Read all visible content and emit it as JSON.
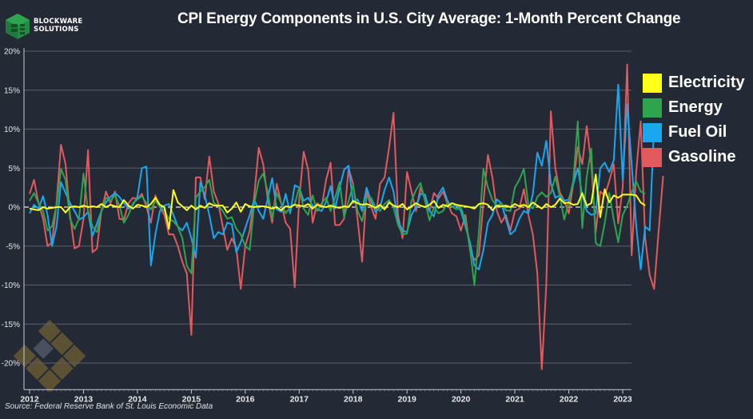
{
  "brand": {
    "name_line1": "BLOCKWARE",
    "name_line2": "SOLUTIONS"
  },
  "title": "CPI Energy Components in U.S. City Average: 1-Month Percent Change",
  "source": "Source: Federal Reserve Bank of St. Louis Economic Data",
  "colors": {
    "background": "#242a35",
    "Electricity": "#ffff1a",
    "Energy": "#2fa44f",
    "Fuel Oil": "#1aa7f0",
    "Gasoline": "#e05a5e",
    "gridline": "#5a606b",
    "zero_line": "#e8e8e8"
  },
  "chart_data": {
    "type": "line",
    "title": "CPI Energy Components in U.S. City Average: 1-Month Percent Change",
    "xlabel": "",
    "ylabel": "",
    "x_start": "2012-01",
    "x_frequency": "monthly",
    "xlim": [
      2012.0,
      2023.0
    ],
    "ylim": [
      -23,
      20
    ],
    "yticks": [
      20,
      15,
      10,
      5,
      0,
      -5,
      -10,
      -15,
      -20
    ],
    "ytick_labels": [
      "20%",
      "15%",
      "10%",
      "5%",
      "0%",
      "-5%",
      "-10%",
      "-15%",
      "-20%"
    ],
    "xticks": [
      2012,
      2013,
      2014,
      2015,
      2016,
      2017,
      2018,
      2019,
      2020,
      2021,
      2022,
      2023
    ],
    "xtick_labels": [
      "2012",
      "2013",
      "2014",
      "2015",
      "2016",
      "2017",
      "2018",
      "2019",
      "2020",
      "2021",
      "2022",
      "2023"
    ],
    "grid": true,
    "zero_line": "dashed",
    "legend_position": "right",
    "series": [
      {
        "name": "Electricity",
        "values": [
          -0.2,
          -0.3,
          -0.4,
          0.0,
          -0.2,
          -0.1,
          0.0,
          0.0,
          -0.7,
          0.0,
          0.1,
          0.0,
          0.2,
          0.0,
          0.1,
          0.0,
          0.4,
          0.0,
          0.3,
          0.1,
          0.0,
          0.9,
          0.2,
          -0.2,
          0.3,
          0.2,
          0.0,
          0.4,
          1.2,
          0.3,
          0.0,
          -2.8,
          2.2,
          0.6,
          0.1,
          -0.4,
          0.2,
          -0.3,
          0.2,
          -0.1,
          0.5,
          0.2,
          0.2,
          0.2,
          -0.7,
          -0.2,
          0.6,
          -0.6,
          0.4,
          0.1,
          0.0,
          0.1,
          0.1,
          0.0,
          -0.2,
          0.0,
          -0.4,
          0.1,
          0.0,
          0.3,
          0.2,
          0.1,
          0.4,
          -0.2,
          0.3,
          0.1,
          0.0,
          0.2,
          0.0,
          -0.1,
          0.1,
          0.0,
          0.8,
          0.5,
          0.3,
          0.4,
          0.2,
          -0.1,
          0.3,
          -0.3,
          0.6,
          0.2,
          0.0,
          0.4,
          -0.3,
          0.1,
          0.5,
          0.2,
          0.0,
          0.3,
          0.8,
          -0.1,
          0.3,
          0.1,
          0.5,
          0.3,
          0.2,
          0.1,
          0.0,
          -0.2,
          0.4,
          0.5,
          0.3,
          -0.4,
          0.2,
          0.1,
          0.2,
          0.0,
          0.4,
          0.1,
          0.3,
          0.0,
          0.6,
          0.2,
          -0.2,
          0.4,
          0.0,
          0.3,
          1.1,
          0.5,
          0.6,
          0.3,
          0.4,
          1.8,
          0.2,
          0.5,
          4.2,
          -1.3,
          2.3,
          0.6,
          1.5,
          1.2,
          1.6,
          1.6,
          1.6,
          1.5,
          0.6,
          0.2
        ]
      },
      {
        "name": "Energy",
        "values": [
          0.8,
          1.8,
          0.5,
          -0.5,
          -3.0,
          -2.5,
          0.2,
          4.9,
          3.5,
          -1.5,
          -2.8,
          -1.5,
          4.3,
          -0.5,
          -2.5,
          -3.2,
          -0.5,
          1.2,
          0.8,
          1.5,
          0.2,
          -2.0,
          -1.0,
          0.5,
          1.0,
          1.4,
          0.5,
          -0.3,
          0.8,
          0.0,
          -0.5,
          -1.5,
          -1.8,
          -2.5,
          -4.0,
          -7.5,
          -8.5,
          1.2,
          2.0,
          2.6,
          3.5,
          0.5,
          0.2,
          -0.5,
          -1.5,
          -1.3,
          -2.8,
          -3.5,
          -5.0,
          -5.5,
          0.5,
          3.4,
          4.3,
          2.0,
          -1.5,
          1.8,
          0.5,
          -0.8,
          0.0,
          0.4,
          2.5,
          -0.2,
          -1.0,
          1.5,
          -0.5,
          0.5,
          1.2,
          -0.5,
          1.2,
          3.2,
          -1.3,
          0.8,
          2.8,
          -0.5,
          -1.8,
          1.2,
          1.2,
          0.0,
          -0.5,
          0.4,
          0.9,
          0.0,
          -2.3,
          -3.5,
          -3.4,
          0.8,
          2.2,
          3.1,
          0.8,
          -1.7,
          0.0,
          -0.8,
          -0.5,
          0.6,
          0.1,
          -0.3,
          0.0,
          -1.8,
          -5.3,
          -10.0,
          -3.2,
          4.9,
          2.5,
          0.9,
          0.1,
          0.5,
          -0.4,
          -0.5,
          2.5,
          3.5,
          4.9,
          0.3,
          -0.2,
          1.3,
          1.9,
          1.3,
          1.8,
          3.9,
          1.4,
          -1.6,
          0.7,
          3.4,
          11.0,
          -2.7,
          3.9,
          7.5,
          -4.6,
          -5.0,
          -2.1,
          1.8,
          -1.6,
          -4.5,
          -1.0,
          0.2,
          1.9,
          3.3,
          2.0,
          1.7
        ]
      },
      {
        "name": "Fuel Oil",
        "values": [
          -0.8,
          0.3,
          -0.2,
          1.4,
          -1.0,
          -5.0,
          -2.5,
          3.2,
          1.8,
          0.5,
          -0.5,
          -1.6,
          -1.3,
          -0.6,
          -3.7,
          -2.1,
          -0.5,
          0.6,
          1.3,
          1.8,
          1.3,
          0.5,
          -0.2,
          0.3,
          1.3,
          5.0,
          5.2,
          -7.5,
          -3.5,
          -0.5,
          0.2,
          0.4,
          -1.0,
          -2.5,
          -3.0,
          -2.0,
          -4.0,
          -6.5,
          3.2,
          1.5,
          -1.0,
          -4.0,
          -3.2,
          -3.5,
          -2.0,
          -2.2,
          -5.8,
          -4.5,
          -2.7,
          -1.0,
          1.0,
          -0.5,
          -1.5,
          1.1,
          3.7,
          -0.3,
          -0.6,
          1.7,
          -0.8,
          2.8,
          2.5,
          0.8,
          1.2,
          0.2,
          -0.3,
          -0.5,
          0.7,
          2.7,
          -0.2,
          2.5,
          4.8,
          5.3,
          0.5,
          1.0,
          -0.5,
          2.5,
          0.8,
          -0.6,
          0.0,
          2.2,
          3.8,
          2.0,
          -1.8,
          -3.0,
          -3.2,
          -1.0,
          0.0,
          1.7,
          1.6,
          -0.5,
          -1.2,
          1.6,
          2.5,
          0.8,
          0.0,
          0.3,
          -0.5,
          -2.5,
          -4.5,
          -7.5,
          -8.0,
          -5.5,
          -2.0,
          -1.0,
          1.0,
          0.5,
          -1.5,
          -3.5,
          -3.0,
          -1.5,
          -0.5,
          -0.8,
          1.7,
          7.0,
          5.3,
          8.5,
          3.0,
          1.2,
          1.5,
          0.8,
          1.0,
          3.0,
          5.0,
          1.5,
          -0.5,
          -1.0,
          -0.8,
          5.0,
          5.7,
          4.5,
          6.0,
          15.7,
          3.5,
          13.2,
          5.5,
          -2.4,
          -8.0,
          -2.5,
          -3.0,
          10.5
        ]
      },
      {
        "name": "Gasoline",
        "values": [
          1.7,
          3.5,
          0.5,
          -1.5,
          -5.0,
          -4.5,
          0.5,
          8.0,
          5.5,
          -1.0,
          -5.3,
          -5.0,
          -1.5,
          7.3,
          -5.8,
          -5.3,
          -0.5,
          2.0,
          0.5,
          2.0,
          -1.5,
          -1.6,
          0.5,
          1.2,
          1.0,
          1.7,
          0.0,
          -2.0,
          1.5,
          0.0,
          -1.0,
          -3.5,
          -3.5,
          -5.0,
          -7.0,
          -8.5,
          -16.4,
          3.8,
          3.8,
          1.0,
          6.5,
          2.0,
          0.5,
          -2.5,
          -5.5,
          -4.0,
          -5.2,
          -10.5,
          -5.0,
          -3.0,
          1.5,
          7.6,
          5.5,
          1.0,
          -2.0,
          3.0,
          0.5,
          -2.0,
          -2.8,
          -10.3,
          1.0,
          7.1,
          4.8,
          -2.0,
          0.5,
          0.0,
          3.5,
          5.7,
          -2.3,
          -2.3,
          -1.5,
          5.0,
          3.0,
          -1.5,
          -7.0,
          2.0,
          0.0,
          -1.5,
          3.0,
          3.8,
          7.6,
          12.1,
          -1.0,
          -4.0,
          4.5,
          2.0,
          -0.5,
          2.5,
          1.0,
          -0.5,
          1.8,
          1.1,
          2.0,
          0.5,
          -0.8,
          -1.2,
          -3.0,
          -1.0,
          -5.5,
          -6.8,
          -6.2,
          0.6,
          6.7,
          3.8,
          -0.5,
          -2.0,
          -1.0,
          -3.0,
          -0.5,
          -0.2,
          2.3,
          -1.0,
          -3.5,
          -8.5,
          -20.8,
          -10.0,
          12.3,
          5.0,
          1.9,
          0.8,
          -0.8,
          3.0,
          7.7,
          5.5,
          10.4,
          5.5,
          -3.2,
          2.0,
          1.5,
          3.3,
          5.5,
          -2.1,
          2.5,
          18.3,
          -6.2,
          4.5,
          11.0,
          -4.0,
          -8.7,
          -10.5,
          -3.0,
          4.0
        ]
      }
    ]
  }
}
